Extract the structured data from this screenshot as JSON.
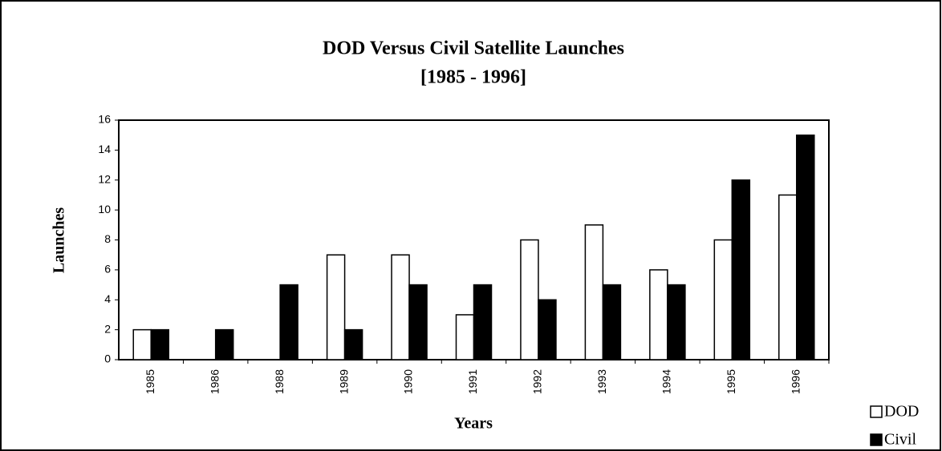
{
  "chart_data": {
    "type": "bar",
    "title": "DOD Versus Civil Satellite Launches",
    "subtitle": "[1985 - 1996]",
    "x_label": "Years",
    "y_label": "Launches",
    "categories": [
      "1985",
      "1986",
      "1988",
      "1989",
      "1990",
      "1991",
      "1992",
      "1993",
      "1994",
      "1995",
      "1996"
    ],
    "series": [
      {
        "name": "DOD",
        "color": "#ffffff",
        "values": [
          2,
          0,
          0,
          7,
          7,
          3,
          8,
          9,
          6,
          8,
          11
        ]
      },
      {
        "name": "Civil",
        "color": "#000000",
        "values": [
          2,
          2,
          5,
          2,
          5,
          5,
          4,
          5,
          5,
          12,
          15
        ]
      }
    ],
    "ylim": [
      0,
      16
    ],
    "yticks": [
      0,
      2,
      4,
      6,
      8,
      10,
      12,
      14,
      16
    ],
    "legend": "right"
  }
}
